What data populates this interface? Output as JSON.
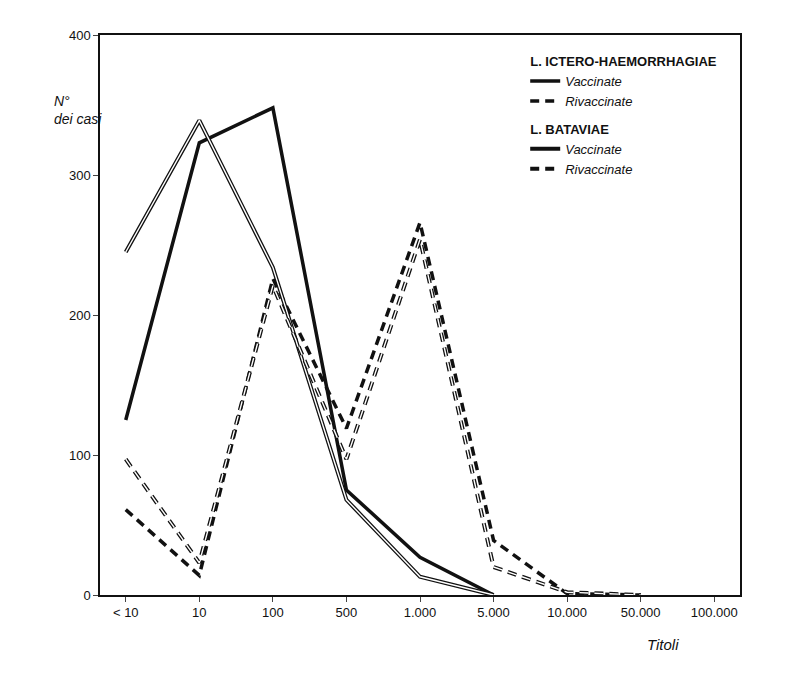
{
  "chart_data": {
    "type": "line",
    "xlabel": "Titoli",
    "ylabel": "N° dei casi",
    "categories": [
      "< 10",
      "10",
      "100",
      "500",
      "1.000",
      "5.000",
      "10.000",
      "50.000",
      "100.000"
    ],
    "series": [
      {
        "group": "L. ICTERO-HAEMORRHAGIAE",
        "name": "Vaccinate",
        "color": "#111111",
        "line_style": "solid",
        "values": [
          125,
          323,
          348,
          75,
          27,
          0,
          null,
          null,
          null
        ]
      },
      {
        "group": "L. ICTERO-HAEMORRHAGIAE",
        "name": "Rivaccinate",
        "color": "#111111",
        "line_style": "dashed",
        "values": [
          61,
          14,
          226,
          119,
          266,
          39,
          1,
          0,
          null
        ]
      },
      {
        "group": "L. BATAVIAE",
        "name": "Vaccinate",
        "color": "#111111",
        "line_style": "double",
        "values": [
          245,
          339,
          234,
          68,
          13,
          0,
          null,
          null,
          null
        ]
      },
      {
        "group": "L. BATAVIAE",
        "name": "Rivaccinate",
        "color": "#111111",
        "line_style": "double_dashed",
        "values": [
          97,
          23,
          221,
          97,
          254,
          20,
          2,
          0,
          null
        ]
      }
    ],
    "ylim": [
      0,
      400
    ],
    "yticks": [
      0,
      100,
      200,
      300,
      400
    ],
    "grid": false,
    "legend": "upper right"
  }
}
